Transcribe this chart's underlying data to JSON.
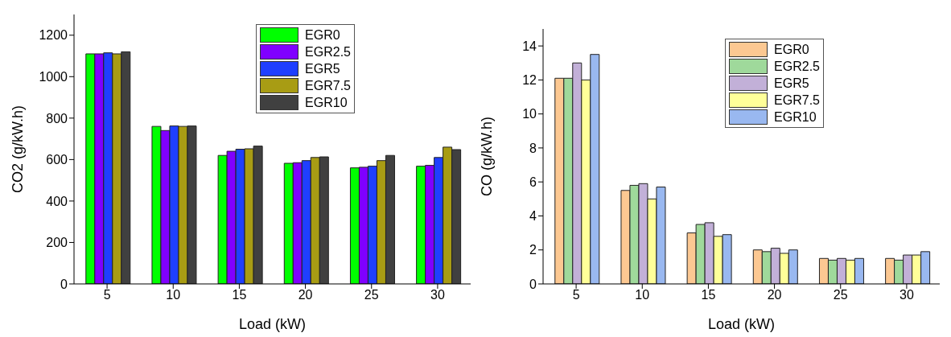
{
  "chart_data": [
    {
      "type": "bar",
      "xlabel": "Load (kW)",
      "ylabel": "CO2 (g/kW.h)",
      "categories": [
        "5",
        "10",
        "15",
        "20",
        "25",
        "30"
      ],
      "ylim": [
        0,
        1300
      ],
      "yticks": [
        0,
        200,
        400,
        600,
        800,
        1000,
        1200
      ],
      "grid": false,
      "legend": "top right",
      "series": [
        {
          "name": "EGR0",
          "color": "#00ff00",
          "values": [
            1110,
            760,
            620,
            582,
            560,
            568
          ]
        },
        {
          "name": "EGR2.5",
          "color": "#8000ff",
          "values": [
            1110,
            740,
            640,
            585,
            563,
            572
          ]
        },
        {
          "name": "EGR5",
          "color": "#1f3fff",
          "values": [
            1115,
            762,
            650,
            595,
            568,
            610
          ]
        },
        {
          "name": "EGR7.5",
          "color": "#a89c14",
          "values": [
            1110,
            760,
            652,
            610,
            595,
            660
          ]
        },
        {
          "name": "EGR10",
          "color": "#404040",
          "values": [
            1120,
            762,
            665,
            613,
            620,
            648
          ]
        }
      ]
    },
    {
      "type": "bar",
      "xlabel": "Load (kW)",
      "ylabel": "CO (g/kW.h)",
      "categories": [
        "5",
        "10",
        "15",
        "20",
        "25",
        "30"
      ],
      "ylim": [
        0,
        15
      ],
      "yticks": [
        0,
        2,
        4,
        6,
        8,
        10,
        12,
        14
      ],
      "grid": false,
      "legend": "top right",
      "series": [
        {
          "name": "EGR0",
          "color": "#fcc892",
          "values": [
            12.1,
            5.5,
            3.0,
            2.0,
            1.5,
            1.5
          ]
        },
        {
          "name": "EGR2.5",
          "color": "#9fd99b",
          "values": [
            12.1,
            5.8,
            3.5,
            1.9,
            1.4,
            1.4
          ]
        },
        {
          "name": "EGR5",
          "color": "#c2b0d8",
          "values": [
            13.0,
            5.9,
            3.6,
            2.1,
            1.5,
            1.7
          ]
        },
        {
          "name": "EGR7.5",
          "color": "#ffff99",
          "values": [
            12.0,
            5.0,
            2.8,
            1.8,
            1.4,
            1.7
          ]
        },
        {
          "name": "EGR10",
          "color": "#99b8f0",
          "values": [
            13.5,
            5.7,
            2.9,
            2.0,
            1.5,
            1.9
          ]
        }
      ]
    }
  ]
}
